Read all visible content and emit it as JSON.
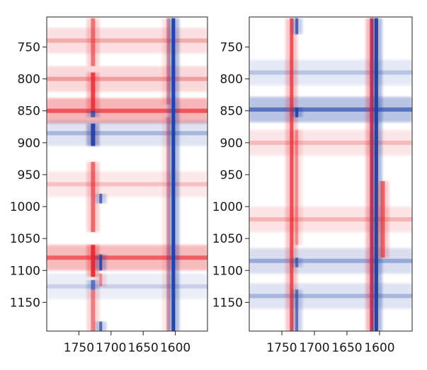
{
  "chart_data": [
    {
      "type": "heatmap",
      "title": "",
      "xlabel": "",
      "ylabel": "",
      "xlim": [
        1800,
        1550
      ],
      "ylim": [
        1195,
        703
      ],
      "x_ticks": [
        1750,
        1700,
        1650,
        1600
      ],
      "x_tick_labels": [
        "1750",
        "1700",
        "1650",
        "1600"
      ],
      "y_ticks": [
        750,
        800,
        850,
        900,
        950,
        1000,
        1050,
        1100,
        1150
      ],
      "y_tick_labels": [
        "750",
        "800",
        "850",
        "900",
        "950",
        "1000",
        "1050",
        "1100",
        "1150"
      ],
      "colors": {
        "positive": "#e8242a",
        "negative": "#1c3fa8",
        "zero": "#ffffff"
      },
      "bands": [
        {
          "x": 1728,
          "width": 6,
          "pos": [
            [
              705,
              780,
              0.55
            ],
            [
              790,
              850,
              0.8
            ],
            [
              870,
              905,
              0.25
            ],
            [
              930,
              1040,
              0.6
            ],
            [
              1060,
              1110,
              0.9
            ],
            [
              1130,
              1195,
              0.5
            ]
          ],
          "neg": [
            [
              850,
              860,
              0.7
            ],
            [
              870,
              905,
              0.9
            ],
            [
              1115,
              1130,
              0.6
            ]
          ]
        },
        {
          "x": 1716,
          "width": 4,
          "neg": [
            [
              980,
              995,
              0.7
            ],
            [
              1075,
              1100,
              0.85
            ],
            [
              1180,
              1195,
              0.7
            ]
          ],
          "pos": [
            [
              1105,
              1125,
              0.4
            ]
          ]
        },
        {
          "x": 1611,
          "width": 5,
          "pos": [
            [
              705,
              840,
              0.35
            ],
            [
              860,
              1195,
              0.3
            ]
          ]
        },
        {
          "x": 1603,
          "width": 5,
          "neg": [
            [
              705,
              1195,
              0.95
            ]
          ]
        }
      ],
      "rows": [
        {
          "y": 740,
          "amp": 0.25
        },
        {
          "y": 800,
          "amp": 0.3
        },
        {
          "y": 850,
          "amp": 0.6
        },
        {
          "y": 885,
          "amp": -0.25
        },
        {
          "y": 965,
          "amp": 0.18
        },
        {
          "y": 1080,
          "amp": 0.55
        },
        {
          "y": 1125,
          "amp": -0.15
        }
      ]
    },
    {
      "type": "heatmap",
      "title": "",
      "xlabel": "",
      "ylabel": "",
      "xlim": [
        1800,
        1550
      ],
      "ylim": [
        1195,
        703
      ],
      "x_ticks": [
        1750,
        1700,
        1650,
        1600
      ],
      "x_tick_labels": [
        "1750",
        "1700",
        "1650",
        "1600"
      ],
      "y_ticks": [
        750,
        800,
        850,
        900,
        950,
        1000,
        1050,
        1100,
        1150
      ],
      "y_tick_labels": [
        "750",
        "800",
        "850",
        "900",
        "950",
        "1000",
        "1050",
        "1100",
        "1150"
      ],
      "colors": {
        "positive": "#e8242a",
        "negative": "#1c3fa8",
        "zero": "#ffffff"
      },
      "bands": [
        {
          "x": 1735,
          "width": 5,
          "pos": [
            [
              705,
              1195,
              0.7
            ]
          ]
        },
        {
          "x": 1727,
          "width": 4,
          "neg": [
            [
              705,
              730,
              0.7
            ],
            [
              845,
              860,
              0.9
            ],
            [
              1080,
              1095,
              0.6
            ],
            [
              1130,
              1195,
              0.6
            ]
          ],
          "pos": [
            [
              880,
              1060,
              0.35
            ]
          ]
        },
        {
          "x": 1612,
          "width": 5,
          "pos": [
            [
              705,
              1195,
              0.85
            ]
          ]
        },
        {
          "x": 1605,
          "width": 5,
          "neg": [
            [
              705,
              1195,
              0.95
            ]
          ]
        },
        {
          "x": 1595,
          "width": 6,
          "pos": [
            [
              960,
              1080,
              0.6
            ]
          ]
        }
      ],
      "rows": [
        {
          "y": 790,
          "amp": -0.2
        },
        {
          "y": 848,
          "amp": -0.55
        },
        {
          "y": 900,
          "amp": 0.2
        },
        {
          "y": 1020,
          "amp": 0.22
        },
        {
          "y": 1085,
          "amp": -0.3
        },
        {
          "y": 1140,
          "amp": -0.25
        }
      ]
    }
  ]
}
